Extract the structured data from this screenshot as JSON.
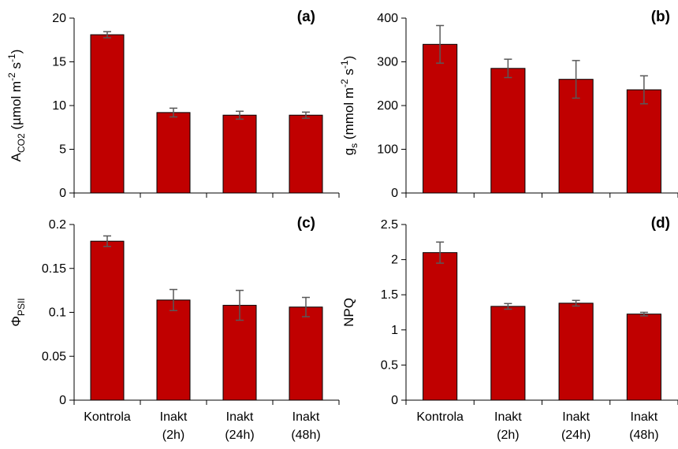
{
  "colors": {
    "bar_fill": "#C00000",
    "bar_stroke": "#000000",
    "error_bar": "#595959",
    "axis": "#000000"
  },
  "chart_data": [
    {
      "type": "bar",
      "panel_label": "(a)",
      "ylabel": {
        "main": "A",
        "sub": "CO2",
        "unit": " (µmol m",
        "sup1": "-2",
        "mid": " s",
        "sup2": "-1",
        "close": ")"
      },
      "ylim": [
        0,
        20
      ],
      "yticks": [
        "0",
        "5",
        "10",
        "15",
        "20"
      ],
      "ytick_values": [
        0,
        5,
        10,
        15,
        20
      ],
      "categories": [
        "Kontrola",
        "Inakt (2h)",
        "Inakt (24h)",
        "Inakt (48h)"
      ],
      "values": [
        18.1,
        9.2,
        8.9,
        8.9
      ],
      "errors": [
        0.35,
        0.5,
        0.45,
        0.35
      ],
      "grid": false
    },
    {
      "type": "bar",
      "panel_label": "(b)",
      "ylabel": {
        "main": "g",
        "sub": "s",
        "unit": " (mmol m",
        "sup1": "-2",
        "mid": " s",
        "sup2": "-1",
        "close": ")"
      },
      "ylim": [
        0,
        400
      ],
      "yticks": [
        "0",
        "100",
        "200",
        "300",
        "400"
      ],
      "ytick_values": [
        0,
        100,
        200,
        300,
        400
      ],
      "categories": [
        "Kontrola",
        "Inakt (2h)",
        "Inakt (24h)",
        "Inakt (48h)"
      ],
      "values": [
        340,
        285,
        260,
        236
      ],
      "errors": [
        43,
        21,
        43,
        32
      ],
      "grid": false
    },
    {
      "type": "bar",
      "panel_label": "(c)",
      "ylabel": {
        "main": "Φ",
        "sub": "PSII",
        "unit": "",
        "sup1": "",
        "mid": "",
        "sup2": "",
        "close": ""
      },
      "ylim": [
        0,
        0.2
      ],
      "yticks": [
        "0",
        "0.05",
        "0.1",
        "0.15",
        "0.2"
      ],
      "ytick_values": [
        0,
        0.05,
        0.1,
        0.15,
        0.2
      ],
      "categories": [
        "Kontrola",
        "Inakt (2h)",
        "Inakt (24h)",
        "Inakt (48h)"
      ],
      "values": [
        0.181,
        0.114,
        0.108,
        0.106
      ],
      "errors": [
        0.006,
        0.012,
        0.017,
        0.011
      ],
      "grid": false
    },
    {
      "type": "bar",
      "panel_label": "(d)",
      "ylabel": {
        "main": "NPQ",
        "sub": "",
        "unit": "",
        "sup1": "",
        "mid": "",
        "sup2": "",
        "close": ""
      },
      "ylim": [
        0,
        2.5
      ],
      "yticks": [
        "0",
        "0.5",
        "1",
        "1.5",
        "2",
        "2.5"
      ],
      "ytick_values": [
        0,
        0.5,
        1,
        1.5,
        2,
        2.5
      ],
      "categories": [
        "Kontrola",
        "Inakt (2h)",
        "Inakt (24h)",
        "Inakt (48h)"
      ],
      "values": [
        2.1,
        1.335,
        1.38,
        1.225
      ],
      "errors": [
        0.15,
        0.04,
        0.04,
        0.025
      ],
      "grid": false
    }
  ],
  "x_category_lines": [
    [
      "Kontrola"
    ],
    [
      "Inakt",
      "(2h)"
    ],
    [
      "Inakt",
      "(24h)"
    ],
    [
      "Inakt",
      "(48h)"
    ]
  ]
}
